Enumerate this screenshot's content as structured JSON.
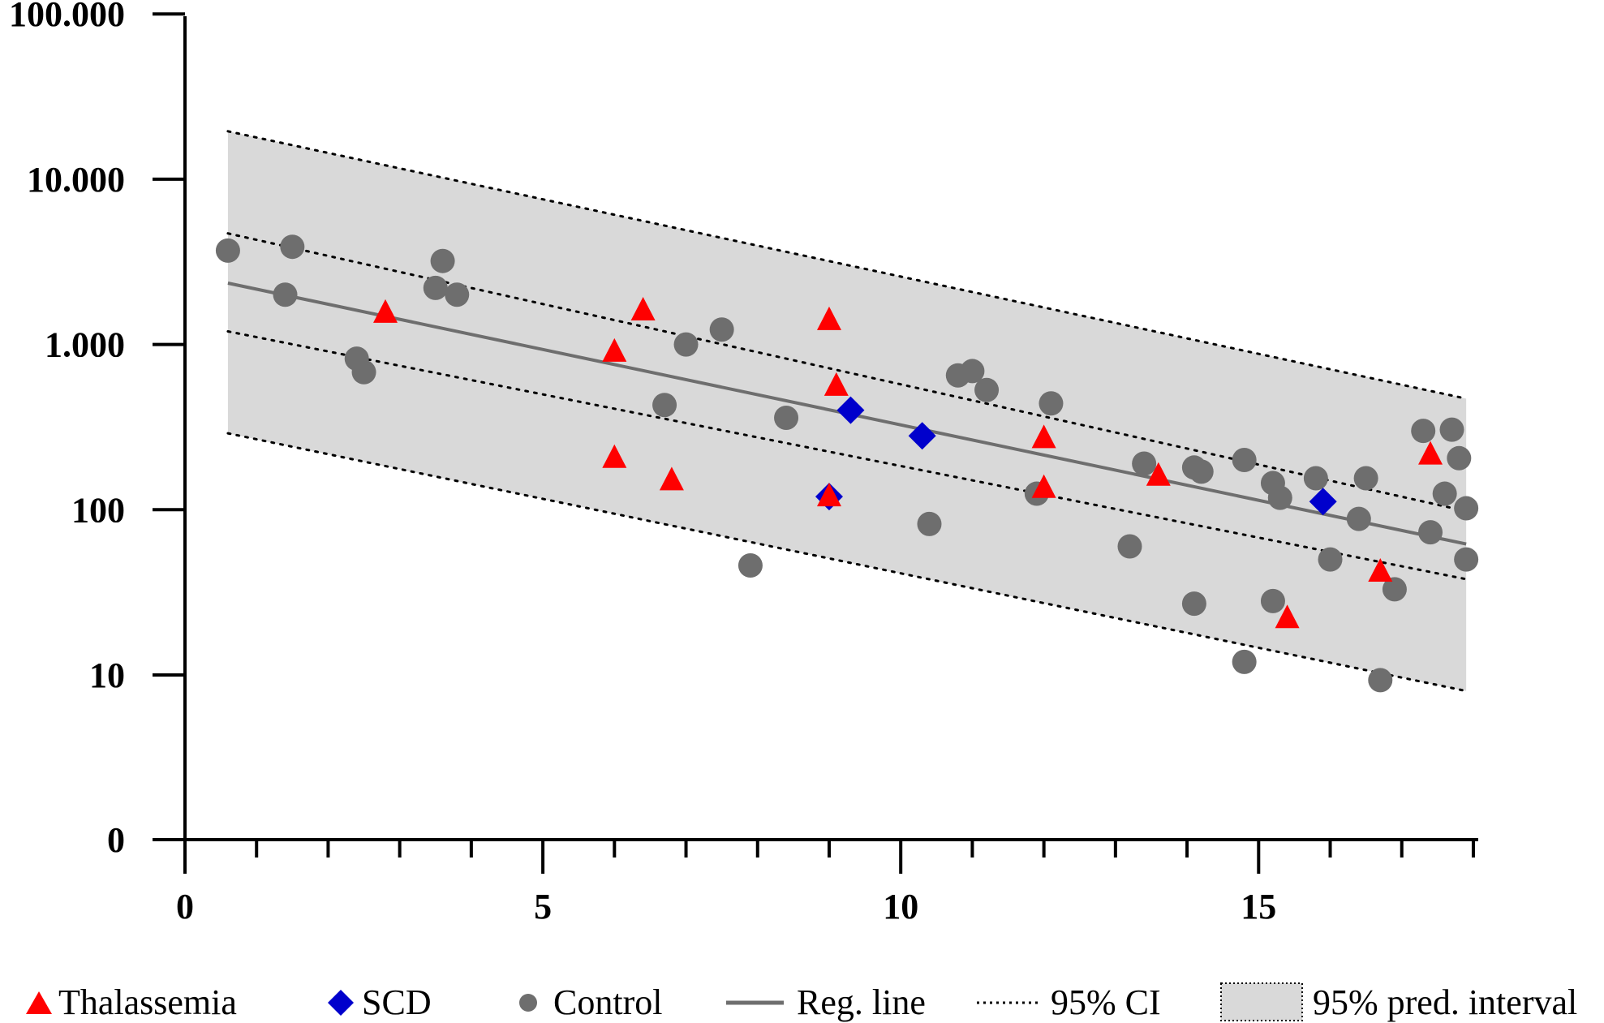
{
  "chart_data": {
    "type": "scatter",
    "title": "",
    "xlabel": "",
    "ylabel": "",
    "x_ticks": [
      "0",
      "5",
      "10",
      "15"
    ],
    "x_tick_values": [
      0,
      5,
      10,
      15
    ],
    "x_minor_step": 1,
    "xlim": [
      0,
      18
    ],
    "y_scale": "log",
    "y_ticks": [
      {
        "value": 0,
        "label": "0"
      },
      {
        "value": 10,
        "label": "10"
      },
      {
        "value": 100,
        "label": "100"
      },
      {
        "value": 1000,
        "label": "1.000"
      },
      {
        "value": 10000,
        "label": "10.000"
      },
      {
        "value": 100000,
        "label": "100.000"
      }
    ],
    "series": [
      {
        "name": "Thalassemia",
        "marker": "triangle",
        "color": "#ff0000",
        "points": [
          [
            2.8,
            1550
          ],
          [
            6.0,
            900
          ],
          [
            6.4,
            1600
          ],
          [
            6.0,
            205
          ],
          [
            6.8,
            150
          ],
          [
            9.0,
            1400
          ],
          [
            9.1,
            560
          ],
          [
            9.0,
            120
          ],
          [
            12.0,
            270
          ],
          [
            12.0,
            135
          ],
          [
            13.6,
            160
          ],
          [
            15.4,
            22
          ],
          [
            16.7,
            42
          ],
          [
            17.4,
            215
          ]
        ]
      },
      {
        "name": "SCD",
        "marker": "diamond",
        "color": "#0000cc",
        "points": [
          [
            9.3,
            400
          ],
          [
            9.0,
            120
          ],
          [
            10.3,
            280
          ],
          [
            15.9,
            112
          ]
        ]
      },
      {
        "name": "Control",
        "marker": "circle",
        "color": "#6e6e6e",
        "points": [
          [
            0.6,
            3700
          ],
          [
            1.5,
            3900
          ],
          [
            1.4,
            2000
          ],
          [
            3.6,
            3200
          ],
          [
            3.5,
            2200
          ],
          [
            3.8,
            2000
          ],
          [
            2.4,
            820
          ],
          [
            2.5,
            680
          ],
          [
            6.7,
            430
          ],
          [
            7.0,
            1000
          ],
          [
            7.5,
            1230
          ],
          [
            7.9,
            46
          ],
          [
            8.4,
            360
          ],
          [
            10.8,
            650
          ],
          [
            11.0,
            690
          ],
          [
            11.2,
            530
          ],
          [
            12.1,
            440
          ],
          [
            11.9,
            125
          ],
          [
            10.4,
            82
          ],
          [
            13.2,
            60
          ],
          [
            13.4,
            190
          ],
          [
            14.1,
            180
          ],
          [
            14.2,
            170
          ],
          [
            14.1,
            27
          ],
          [
            14.8,
            200
          ],
          [
            14.8,
            12
          ],
          [
            15.2,
            145
          ],
          [
            15.3,
            118
          ],
          [
            15.2,
            28
          ],
          [
            15.8,
            155
          ],
          [
            16.0,
            50
          ],
          [
            16.4,
            88
          ],
          [
            16.5,
            155
          ],
          [
            16.7,
            9.3
          ],
          [
            16.9,
            33
          ],
          [
            17.3,
            300
          ],
          [
            17.7,
            305
          ],
          [
            17.4,
            73
          ],
          [
            17.6,
            125
          ],
          [
            17.8,
            205
          ],
          [
            17.9,
            102
          ],
          [
            17.9,
            50
          ]
        ]
      }
    ],
    "regression_line": {
      "name": "Reg. line",
      "x": [
        0.6,
        17.9
      ],
      "y": [
        2350,
        62
      ],
      "color": "#6e6e6e"
    },
    "ci_95": {
      "name": "95% CI",
      "upper": {
        "x": [
          0.6,
          17.9
        ],
        "y": [
          4700,
          98
        ]
      },
      "lower": {
        "x": [
          0.6,
          17.9
        ],
        "y": [
          1200,
          38
        ]
      }
    },
    "prediction_interval_95": {
      "name": "95% pred. interval",
      "upper": {
        "x": [
          0.6,
          17.9
        ],
        "y": [
          19500,
          470
        ]
      },
      "lower": {
        "x": [
          0.6,
          17.9
        ],
        "y": [
          290,
          8
        ]
      },
      "fill": "#d9d9d9"
    },
    "legend": {
      "position": "bottom",
      "items": [
        "Thalassemia",
        "SCD",
        "Control",
        "Reg. line",
        "95% CI",
        "95% pred. interval"
      ]
    }
  }
}
